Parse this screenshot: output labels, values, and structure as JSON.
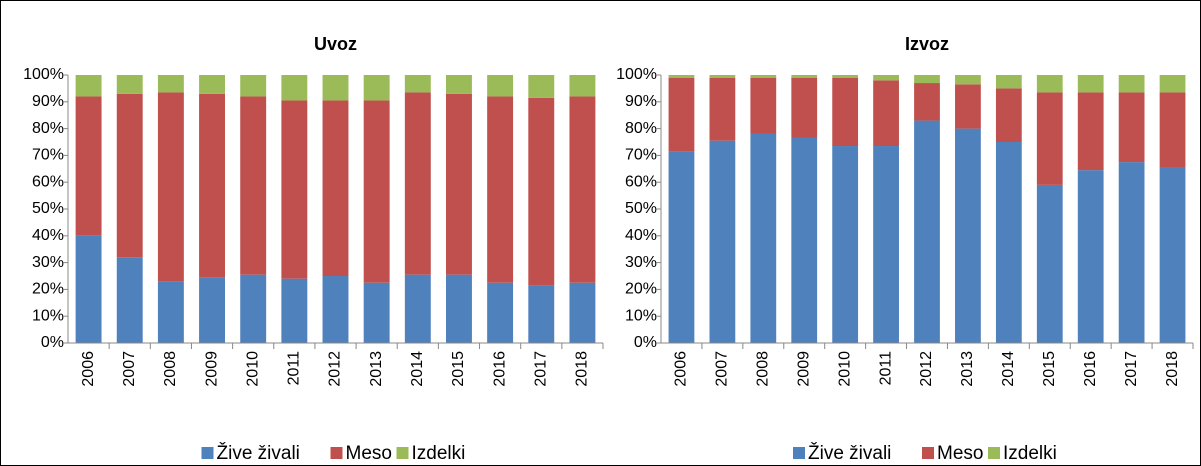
{
  "chart_data": [
    {
      "type": "stacked_bar",
      "title": "Uvoz",
      "categories": [
        "2006",
        "2007",
        "2008",
        "2009",
        "2010",
        "2011",
        "2012",
        "2013",
        "2014",
        "2015",
        "2016",
        "2017",
        "2018"
      ],
      "series": [
        {
          "name": "Žive živali",
          "color": "#4f81bd",
          "values": [
            40,
            32,
            23,
            24.5,
            25.5,
            24,
            25,
            22.5,
            25.5,
            25.5,
            22.5,
            21.5,
            22.5
          ]
        },
        {
          "name": "Meso",
          "color": "#c0504d",
          "values": [
            52,
            61,
            70.5,
            68.5,
            66.5,
            66.5,
            65.5,
            68,
            68,
            67.5,
            69.5,
            70,
            69.5
          ]
        },
        {
          "name": "Izdelki",
          "color": "#9bbb59",
          "values": [
            8,
            7,
            6.5,
            7,
            8,
            9.5,
            9.5,
            9.5,
            6.5,
            7,
            8,
            8.5,
            8
          ]
        }
      ],
      "ylim": [
        0,
        100
      ],
      "yticks": [
        {
          "value": 0,
          "label": "0%"
        },
        {
          "value": 10,
          "label": "10%"
        },
        {
          "value": 20,
          "label": "20%"
        },
        {
          "value": 30,
          "label": "30%"
        },
        {
          "value": 40,
          "label": "40%"
        },
        {
          "value": 50,
          "label": "50%"
        },
        {
          "value": 60,
          "label": "60%"
        },
        {
          "value": 70,
          "label": "70%"
        },
        {
          "value": 80,
          "label": "80%"
        },
        {
          "value": 90,
          "label": "90%"
        },
        {
          "value": 100,
          "label": "100%"
        }
      ],
      "legend": "bottom"
    },
    {
      "type": "stacked_bar",
      "title": "Izvoz",
      "categories": [
        "2006",
        "2007",
        "2008",
        "2009",
        "2010",
        "2011",
        "2012",
        "2013",
        "2014",
        "2015",
        "2016",
        "2017",
        "2018"
      ],
      "series": [
        {
          "name": "Žive živali",
          "color": "#4f81bd",
          "values": [
            71.5,
            75.5,
            78,
            76.5,
            73.5,
            73.5,
            83,
            80,
            75,
            59,
            64.5,
            67.5,
            65.5
          ]
        },
        {
          "name": "Meso",
          "color": "#c0504d",
          "values": [
            27.5,
            23.5,
            21,
            22.5,
            25.5,
            24.5,
            14,
            16.5,
            20,
            34.5,
            29,
            26,
            28
          ]
        },
        {
          "name": "Izdelki",
          "color": "#9bbb59",
          "values": [
            1,
            1,
            1,
            1,
            1,
            2,
            3,
            3.5,
            5,
            6.5,
            6.5,
            6.5,
            6.5
          ]
        }
      ],
      "ylim": [
        0,
        100
      ],
      "yticks": [
        {
          "value": 0,
          "label": "0%"
        },
        {
          "value": 10,
          "label": "10%"
        },
        {
          "value": 20,
          "label": "20%"
        },
        {
          "value": 30,
          "label": "30%"
        },
        {
          "value": 40,
          "label": "40%"
        },
        {
          "value": 50,
          "label": "50%"
        },
        {
          "value": 60,
          "label": "60%"
        },
        {
          "value": 70,
          "label": "70%"
        },
        {
          "value": 80,
          "label": "80%"
        },
        {
          "value": 90,
          "label": "90%"
        },
        {
          "value": 100,
          "label": "100%"
        }
      ],
      "legend": "bottom"
    }
  ]
}
